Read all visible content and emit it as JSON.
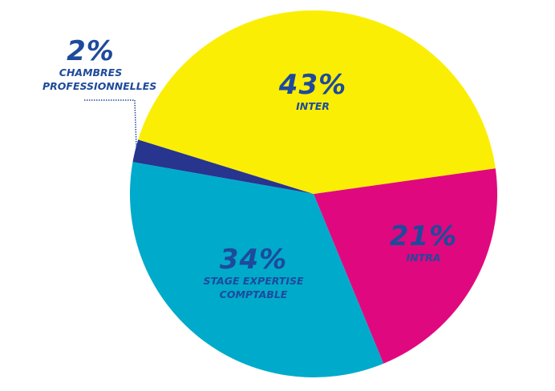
{
  "chart_data": {
    "type": "pie",
    "categories": [
      "INTER",
      "INTRA",
      "STAGE EXPERTISE COMPTABLE",
      "CHAMBRES PROFESSIONNELLES"
    ],
    "values": [
      43,
      21,
      34,
      2
    ],
    "value_labels": [
      "43%",
      "21%",
      "34%",
      "2%"
    ],
    "colors": [
      "#fbee05",
      "#e0087f",
      "#00aacb",
      "#27358f"
    ]
  }
}
